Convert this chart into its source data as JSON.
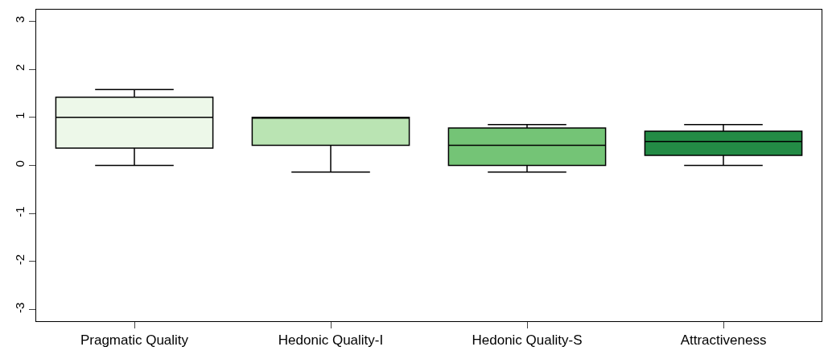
{
  "chart_data": {
    "type": "box",
    "categories": [
      "Pragmatic Quality",
      "Hedonic Quality-I",
      "Hedonic Quality-S",
      "Attractiveness"
    ],
    "colors": [
      "#edf8e9",
      "#bae4b3",
      "#74c476",
      "#238b45"
    ],
    "boxes": [
      {
        "low": 0,
        "q1": 0.36,
        "median": 1.0,
        "q3": 1.42,
        "high": 1.58
      },
      {
        "low": -0.14,
        "q1": 0.42,
        "median": 1.0,
        "q3": 1.0,
        "high": 1.0
      },
      {
        "low": -0.14,
        "q1": 0.0,
        "median": 0.42,
        "q3": 0.78,
        "high": 0.85
      },
      {
        "low": 0,
        "q1": 0.21,
        "median": 0.5,
        "q3": 0.71,
        "high": 0.85
      }
    ],
    "ylim": [
      -3.24,
      3.24
    ],
    "yticks": [
      -3,
      -2,
      -1,
      0,
      1,
      2,
      3
    ],
    "legend": false
  }
}
